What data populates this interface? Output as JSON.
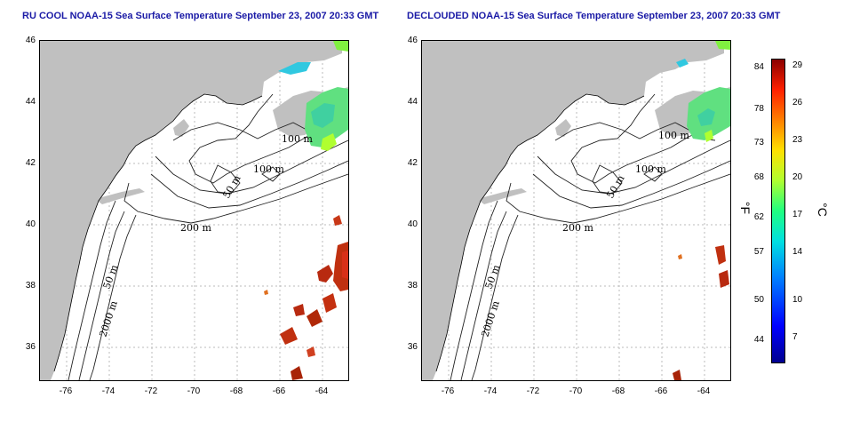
{
  "titles": {
    "left": "RU COOL NOAA-15 Sea Surface Temperature September 23, 2007 20:33 GMT",
    "right": "DECLOUDED NOAA-15 Sea Surface Temperature September 23, 2007 20:33 GMT"
  },
  "axes": {
    "lat_ticks": [
      "46",
      "44",
      "42",
      "40",
      "38",
      "36"
    ],
    "lon_ticks": [
      "-76",
      "-74",
      "-72",
      "-70",
      "-68",
      "-66",
      "-64"
    ]
  },
  "contour_labels": {
    "left": [
      "100 m",
      "100 m",
      "50 m",
      "200 m",
      "50 m",
      "2000 m"
    ],
    "right": [
      "100 m",
      "100 m",
      "50 m",
      "200 m",
      "50 m",
      "2000 m"
    ]
  },
  "colorbar": {
    "fahrenheit_label": "°F",
    "celsius_label": "°C",
    "fahrenheit_ticks": [
      "84",
      "78",
      "73",
      "68",
      "62",
      "57",
      "50",
      "44"
    ],
    "celsius_ticks": [
      "29",
      "26",
      "23",
      "20",
      "17",
      "14",
      "10",
      "7"
    ],
    "colors": [
      "#00008f",
      "#0000ff",
      "#0080ff",
      "#00e0e0",
      "#20ff80",
      "#b0ff30",
      "#ffe000",
      "#ff8000",
      "#ff2000",
      "#8b0000"
    ]
  },
  "colors": {
    "land": "#c0c0c0",
    "ocean": "#ffffff",
    "title": "#1a1aa6"
  }
}
